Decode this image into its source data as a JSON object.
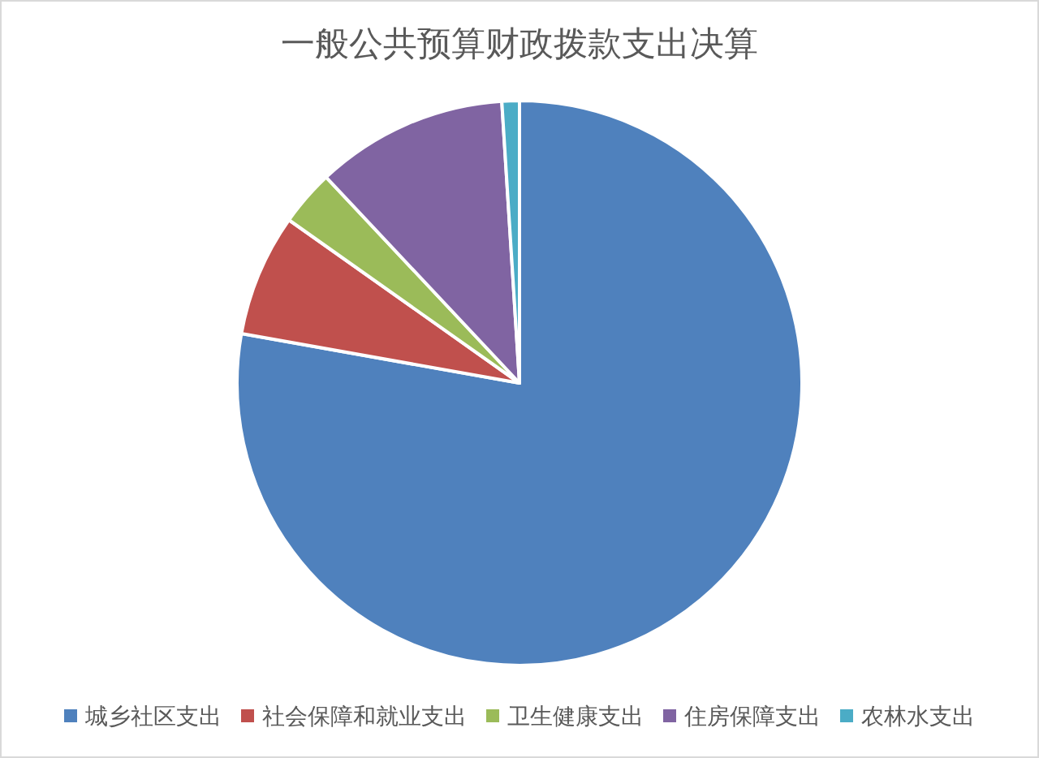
{
  "chart_data": {
    "type": "pie",
    "title": "一般公共预算财政拨款支出决算",
    "categories": [
      "城乡社区支出",
      "社会保障和就业支出",
      "卫生健康支出",
      "住房保障支出",
      "农林水支出"
    ],
    "values": [
      77.8,
      7.0,
      3.2,
      11.0,
      1.0
    ],
    "colors": [
      "#4f81bd",
      "#c0504d",
      "#9bbb59",
      "#8064a2",
      "#4bacc6"
    ],
    "legend": "bottom"
  }
}
